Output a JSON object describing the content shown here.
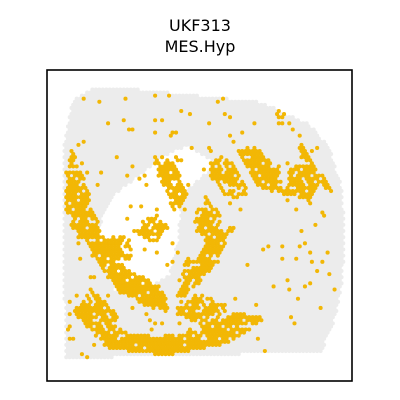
{
  "chart_data": {
    "type": "scatter",
    "title": "UKF313",
    "subtitle": "MES.Hyp",
    "xlabel": "",
    "ylabel": "",
    "axes_ticks": false,
    "grid": false,
    "legend": "none",
    "colors": {
      "background_spot": "#ececec",
      "highlight_spot": "#f2b705",
      "frame": "#000000"
    },
    "tissue_outline": [
      [
        0.06,
        0.93
      ],
      [
        0.9,
        0.91
      ],
      [
        0.94,
        0.83
      ],
      [
        0.97,
        0.7
      ],
      [
        0.98,
        0.55
      ],
      [
        0.97,
        0.38
      ],
      [
        0.93,
        0.25
      ],
      [
        0.86,
        0.17
      ],
      [
        0.7,
        0.1
      ],
      [
        0.5,
        0.08
      ],
      [
        0.3,
        0.06
      ],
      [
        0.15,
        0.05
      ],
      [
        0.08,
        0.1
      ],
      [
        0.05,
        0.25
      ],
      [
        0.05,
        0.6
      ]
    ],
    "hole_outline": [
      [
        0.22,
        0.71
      ],
      [
        0.28,
        0.72
      ],
      [
        0.33,
        0.7
      ],
      [
        0.4,
        0.66
      ],
      [
        0.43,
        0.55
      ],
      [
        0.44,
        0.4
      ],
      [
        0.5,
        0.35
      ],
      [
        0.55,
        0.3
      ],
      [
        0.46,
        0.24
      ],
      [
        0.38,
        0.28
      ],
      [
        0.3,
        0.34
      ],
      [
        0.22,
        0.4
      ],
      [
        0.16,
        0.52
      ]
    ],
    "highlight_regions": [
      {
        "poly": [
          [
            0.1,
            0.52
          ],
          [
            0.22,
            0.7
          ],
          [
            0.32,
            0.76
          ],
          [
            0.4,
            0.78
          ],
          [
            0.38,
            0.7
          ],
          [
            0.26,
            0.64
          ],
          [
            0.18,
            0.52
          ],
          [
            0.14,
            0.44
          ]
        ],
        "density": 0.88
      },
      {
        "poly": [
          [
            0.08,
            0.25
          ],
          [
            0.14,
            0.4
          ],
          [
            0.1,
            0.56
          ],
          [
            0.06,
            0.46
          ],
          [
            0.06,
            0.32
          ]
        ],
        "density": 0.85
      },
      {
        "poly": [
          [
            0.2,
            0.58
          ],
          [
            0.28,
            0.62
          ],
          [
            0.27,
            0.54
          ],
          [
            0.21,
            0.53
          ]
        ],
        "density": 0.8
      },
      {
        "poly": [
          [
            0.46,
            0.72
          ],
          [
            0.56,
            0.62
          ],
          [
            0.62,
            0.5
          ],
          [
            0.55,
            0.52
          ],
          [
            0.46,
            0.66
          ],
          [
            0.42,
            0.74
          ]
        ],
        "density": 0.85
      },
      {
        "poly": [
          [
            0.52,
            0.4
          ],
          [
            0.58,
            0.48
          ],
          [
            0.54,
            0.58
          ],
          [
            0.48,
            0.48
          ]
        ],
        "density": 0.75
      },
      {
        "poly": [
          [
            0.52,
            0.32
          ],
          [
            0.6,
            0.42
          ],
          [
            0.66,
            0.4
          ],
          [
            0.62,
            0.3
          ],
          [
            0.56,
            0.27
          ]
        ],
        "density": 0.7
      },
      {
        "poly": [
          [
            0.62,
            0.26
          ],
          [
            0.7,
            0.38
          ],
          [
            0.78,
            0.4
          ],
          [
            0.76,
            0.32
          ],
          [
            0.68,
            0.24
          ]
        ],
        "density": 0.85
      },
      {
        "poly": [
          [
            0.78,
            0.4
          ],
          [
            0.86,
            0.42
          ],
          [
            0.9,
            0.36
          ],
          [
            0.86,
            0.3
          ],
          [
            0.8,
            0.31
          ]
        ],
        "density": 0.8
      },
      {
        "poly": [
          [
            0.34,
            0.26
          ],
          [
            0.42,
            0.3
          ],
          [
            0.46,
            0.4
          ],
          [
            0.42,
            0.46
          ],
          [
            0.37,
            0.36
          ]
        ],
        "density": 0.85
      },
      {
        "poly": [
          [
            0.28,
            0.52
          ],
          [
            0.36,
            0.56
          ],
          [
            0.4,
            0.5
          ],
          [
            0.33,
            0.46
          ]
        ],
        "density": 0.75
      },
      {
        "poly": [
          [
            0.08,
            0.78
          ],
          [
            0.2,
            0.9
          ],
          [
            0.4,
            0.92
          ],
          [
            0.6,
            0.88
          ],
          [
            0.72,
            0.8
          ],
          [
            0.62,
            0.78
          ],
          [
            0.5,
            0.84
          ],
          [
            0.36,
            0.86
          ],
          [
            0.22,
            0.84
          ],
          [
            0.12,
            0.74
          ]
        ],
        "density": 0.9
      },
      {
        "poly": [
          [
            0.14,
            0.7
          ],
          [
            0.24,
            0.8
          ],
          [
            0.2,
            0.86
          ],
          [
            0.1,
            0.8
          ]
        ],
        "density": 0.75
      },
      {
        "poly": [
          [
            0.4,
            0.78
          ],
          [
            0.54,
            0.84
          ],
          [
            0.6,
            0.76
          ],
          [
            0.5,
            0.72
          ]
        ],
        "density": 0.7
      },
      {
        "poly": [
          [
            0.46,
            0.6
          ],
          [
            0.52,
            0.64
          ],
          [
            0.5,
            0.7
          ],
          [
            0.44,
            0.66
          ]
        ],
        "density": 0.7
      },
      {
        "poly": [
          [
            0.75,
            0.12
          ],
          [
            0.79,
            0.12
          ],
          [
            0.8,
            0.17
          ],
          [
            0.76,
            0.17
          ]
        ],
        "density": 0.75
      },
      {
        "poly": [
          [
            0.82,
            0.25
          ],
          [
            0.86,
            0.31
          ],
          [
            0.92,
            0.4
          ],
          [
            0.94,
            0.39
          ],
          [
            0.88,
            0.3
          ],
          [
            0.84,
            0.23
          ]
        ],
        "density": 0.85
      }
    ],
    "sparse_highlight_rate": 0.025
  }
}
